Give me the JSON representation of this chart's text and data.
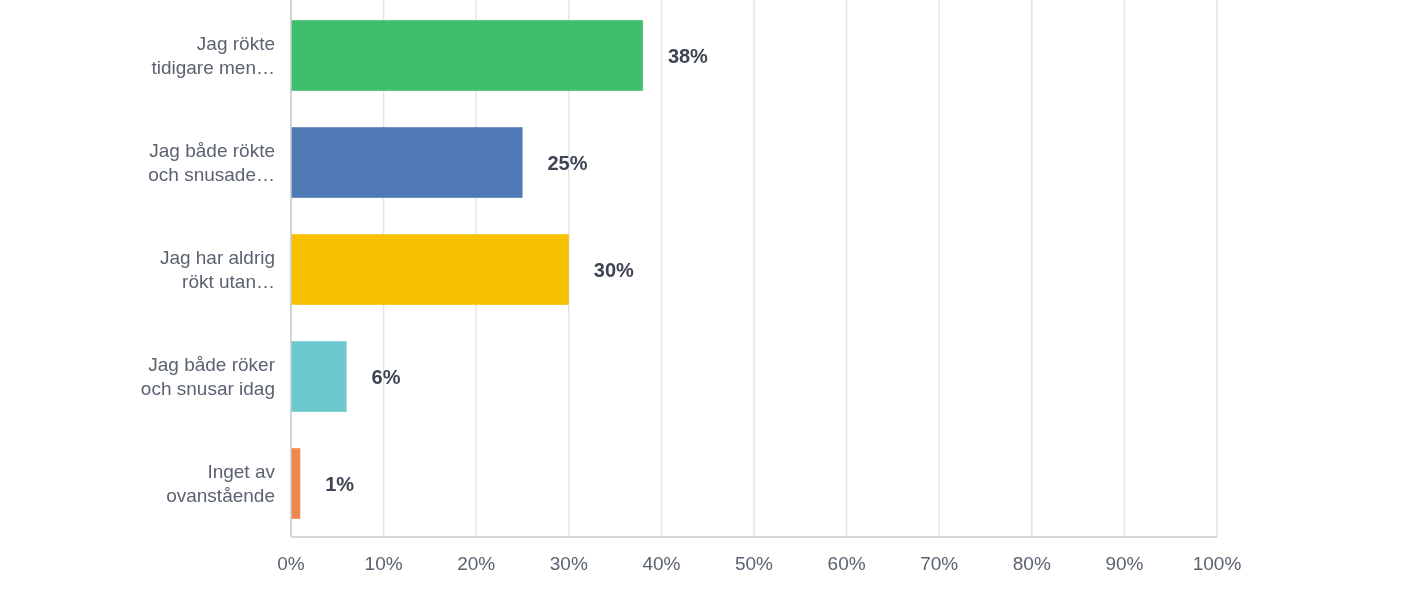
{
  "chart_data": {
    "type": "bar",
    "orientation": "horizontal",
    "categories": [
      "Jag rökte tidigare men…",
      "Jag både rökte och snusade…",
      "Jag har aldrig rökt utan…",
      "Jag både röker och snusar idag",
      "Inget av ovanstående"
    ],
    "values": [
      38,
      25,
      30,
      6,
      1
    ],
    "colors": [
      "#3fbf6e",
      "#4e79b5",
      "#f7c000",
      "#6cc9cd",
      "#f0884e"
    ],
    "xlim": [
      0,
      100
    ],
    "xticks": [
      {
        "value": 0,
        "label": "0%"
      },
      {
        "value": 10,
        "label": "10%"
      },
      {
        "value": 20,
        "label": "20%"
      },
      {
        "value": 30,
        "label": "30%"
      },
      {
        "value": 40,
        "label": "40%"
      },
      {
        "value": 50,
        "label": "50%"
      },
      {
        "value": 60,
        "label": "60%"
      },
      {
        "value": 70,
        "label": "70%"
      },
      {
        "value": 80,
        "label": "80%"
      },
      {
        "value": 90,
        "label": "90%"
      },
      {
        "value": 100,
        "label": "100%"
      }
    ],
    "value_labels": [
      "38%",
      "25%",
      "30%",
      "6%",
      "1%"
    ],
    "grid": "x"
  }
}
